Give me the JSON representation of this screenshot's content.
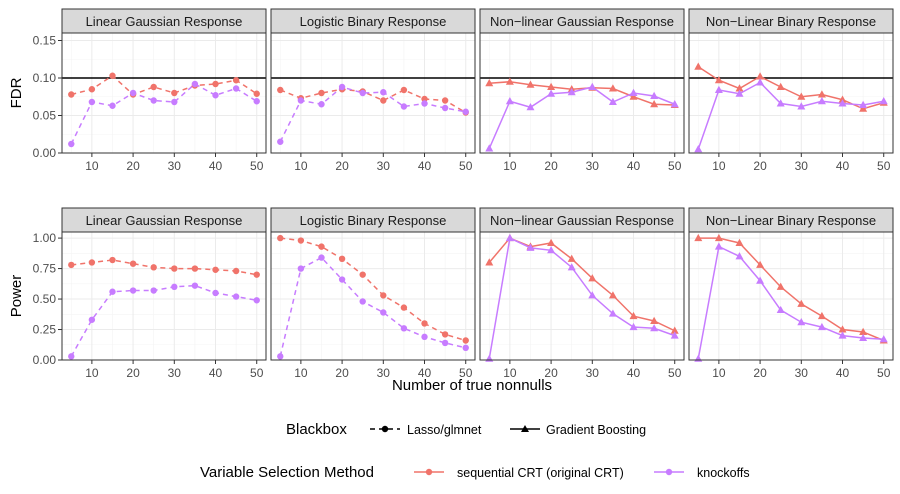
{
  "chart_data": {
    "type": "line",
    "facet_columns": [
      "Linear Gaussian Response",
      "Logistic Binary Response",
      "Non−linear Gaussian Response",
      "Non−Linear Binary Response"
    ],
    "x": [
      5,
      10,
      15,
      20,
      25,
      30,
      35,
      40,
      45,
      50
    ],
    "x_ticks": [
      "10",
      "20",
      "30",
      "40",
      "50"
    ],
    "xlabel": "Number of true nonnulls",
    "reference_line": {
      "metric": "FDR",
      "y": 0.1
    },
    "rows": [
      {
        "ylabel": "FDR",
        "ylim": [
          0,
          0.16
        ],
        "y_ticks": [
          "0.00",
          "0.05",
          "0.10",
          "0.15"
        ],
        "panels": [
          {
            "series": [
              {
                "method": "sequential CRT (original CRT)",
                "blackbox": "Lasso/glmnet",
                "values": [
                  0.078,
                  0.085,
                  0.103,
                  0.078,
                  0.088,
                  0.08,
                  0.09,
                  0.092,
                  0.097,
                  0.079
                ]
              },
              {
                "method": "knockoffs",
                "blackbox": "Lasso/glmnet",
                "values": [
                  0.012,
                  0.068,
                  0.063,
                  0.08,
                  0.07,
                  0.068,
                  0.092,
                  0.077,
                  0.086,
                  0.069
                ]
              }
            ]
          },
          {
            "series": [
              {
                "method": "sequential CRT (original CRT)",
                "blackbox": "Lasso/glmnet",
                "values": [
                  0.084,
                  0.073,
                  0.08,
                  0.085,
                  0.082,
                  0.07,
                  0.084,
                  0.072,
                  0.07,
                  0.054
                ]
              },
              {
                "method": "knockoffs",
                "blackbox": "Lasso/glmnet",
                "values": [
                  0.015,
                  0.07,
                  0.065,
                  0.088,
                  0.08,
                  0.081,
                  0.062,
                  0.066,
                  0.06,
                  0.055
                ]
              }
            ]
          },
          {
            "series": [
              {
                "method": "sequential CRT (original CRT)",
                "blackbox": "Gradient Boosting",
                "values": [
                  0.093,
                  0.095,
                  0.091,
                  0.088,
                  0.085,
                  0.087,
                  0.086,
                  0.075,
                  0.065,
                  0.064
                ]
              },
              {
                "method": "knockoffs",
                "blackbox": "Gradient Boosting",
                "values": [
                  0.006,
                  0.069,
                  0.061,
                  0.079,
                  0.081,
                  0.088,
                  0.068,
                  0.08,
                  0.076,
                  0.065
                ]
              }
            ]
          },
          {
            "series": [
              {
                "method": "sequential CRT (original CRT)",
                "blackbox": "Gradient Boosting",
                "values": [
                  0.115,
                  0.097,
                  0.086,
                  0.102,
                  0.088,
                  0.075,
                  0.078,
                  0.071,
                  0.059,
                  0.067
                ]
              },
              {
                "method": "knockoffs",
                "blackbox": "Gradient Boosting",
                "values": [
                  0.005,
                  0.084,
                  0.079,
                  0.094,
                  0.066,
                  0.062,
                  0.069,
                  0.066,
                  0.064,
                  0.069
                ]
              }
            ]
          }
        ]
      },
      {
        "ylabel": "Power",
        "ylim": [
          0,
          1.05
        ],
        "y_ticks": [
          "0.00",
          "0.25",
          "0.50",
          "0.75",
          "1.00"
        ],
        "panels": [
          {
            "series": [
              {
                "method": "sequential CRT (original CRT)",
                "blackbox": "Lasso/glmnet",
                "values": [
                  0.78,
                  0.8,
                  0.82,
                  0.79,
                  0.76,
                  0.75,
                  0.75,
                  0.74,
                  0.73,
                  0.7
                ]
              },
              {
                "method": "knockoffs",
                "blackbox": "Lasso/glmnet",
                "values": [
                  0.03,
                  0.33,
                  0.56,
                  0.57,
                  0.57,
                  0.6,
                  0.61,
                  0.55,
                  0.52,
                  0.49
                ]
              }
            ]
          },
          {
            "series": [
              {
                "method": "sequential CRT (original CRT)",
                "blackbox": "Lasso/glmnet",
                "values": [
                  1.0,
                  0.98,
                  0.93,
                  0.83,
                  0.7,
                  0.53,
                  0.43,
                  0.3,
                  0.21,
                  0.16
                ]
              },
              {
                "method": "knockoffs",
                "blackbox": "Lasso/glmnet",
                "values": [
                  0.03,
                  0.75,
                  0.84,
                  0.66,
                  0.48,
                  0.39,
                  0.26,
                  0.19,
                  0.14,
                  0.1
                ]
              }
            ]
          },
          {
            "series": [
              {
                "method": "sequential CRT (original CRT)",
                "blackbox": "Gradient Boosting",
                "values": [
                  0.8,
                  1.0,
                  0.93,
                  0.96,
                  0.83,
                  0.67,
                  0.53,
                  0.36,
                  0.32,
                  0.24
                ]
              },
              {
                "method": "knockoffs",
                "blackbox": "Gradient Boosting",
                "values": [
                  0.01,
                  1.0,
                  0.92,
                  0.9,
                  0.76,
                  0.53,
                  0.38,
                  0.27,
                  0.26,
                  0.2
                ]
              }
            ]
          },
          {
            "series": [
              {
                "method": "sequential CRT (original CRT)",
                "blackbox": "Gradient Boosting",
                "values": [
                  1.0,
                  1.0,
                  0.96,
                  0.78,
                  0.6,
                  0.46,
                  0.36,
                  0.25,
                  0.23,
                  0.16
                ]
              },
              {
                "method": "knockoffs",
                "blackbox": "Gradient Boosting",
                "values": [
                  0.01,
                  0.93,
                  0.85,
                  0.65,
                  0.41,
                  0.31,
                  0.27,
                  0.2,
                  0.18,
                  0.17
                ]
              }
            ]
          }
        ]
      }
    ],
    "legends": {
      "blackbox": {
        "title": "Blackbox",
        "items": [
          "Lasso/glmnet",
          "Gradient Boosting"
        ]
      },
      "method": {
        "title": "Variable Selection Method",
        "items": [
          "sequential CRT (original CRT)",
          "knockoffs"
        ]
      }
    },
    "colors": {
      "sequential CRT (original CRT)": "#f0736a",
      "knockoffs": "#c77cff"
    }
  }
}
